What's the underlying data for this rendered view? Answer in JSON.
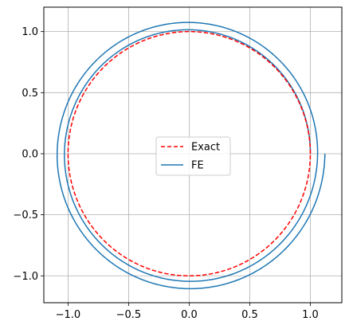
{
  "chart_data": {
    "type": "line",
    "title": "",
    "xlabel": "",
    "ylabel": "",
    "xlim": [
      -1.2,
      1.26
    ],
    "ylim": [
      -1.22,
      1.2
    ],
    "xticks": [
      -1.0,
      -0.5,
      0.0,
      0.5,
      1.0
    ],
    "xtick_labels": [
      "−1.0",
      "−0.5",
      "0.0",
      "0.5",
      "1.0"
    ],
    "yticks": [
      -1.0,
      -0.5,
      0.0,
      0.5,
      1.0
    ],
    "ytick_labels": [
      "−1.0",
      "−0.5",
      "0.0",
      "0.5",
      "1.0"
    ],
    "grid": true,
    "aspect": "equal",
    "legend_position": "center",
    "series": [
      {
        "name": "Exact",
        "color": "#ff0000",
        "style": "dashed",
        "shape": "unit circle",
        "x": [
          1.0,
          0.9511,
          0.809,
          0.5878,
          0.309,
          0.0,
          -0.309,
          -0.5878,
          -0.809,
          -0.9511,
          -1.0,
          -0.9511,
          -0.809,
          -0.5878,
          -0.309,
          0.0,
          0.309,
          0.5878,
          0.809,
          0.9511,
          1.0
        ],
        "y": [
          0.0,
          0.309,
          0.5878,
          0.809,
          0.9511,
          1.0,
          0.9511,
          0.809,
          0.5878,
          0.309,
          0.0,
          -0.309,
          -0.5878,
          -0.809,
          -0.9511,
          -1.0,
          -0.9511,
          -0.809,
          -0.5878,
          -0.309,
          0.0
        ]
      },
      {
        "name": "FE",
        "color": "#1f77b4",
        "style": "solid",
        "shape": "outward spiral, about 2 turns",
        "x": [
          1.0,
          0.0,
          -1.0,
          0.0,
          1.05,
          0.0,
          -1.08,
          0.0,
          1.12
        ],
        "y": [
          0.0,
          1.02,
          0.0,
          -1.04,
          0.0,
          1.07,
          0.0,
          -1.1,
          -0.03
        ]
      }
    ]
  }
}
